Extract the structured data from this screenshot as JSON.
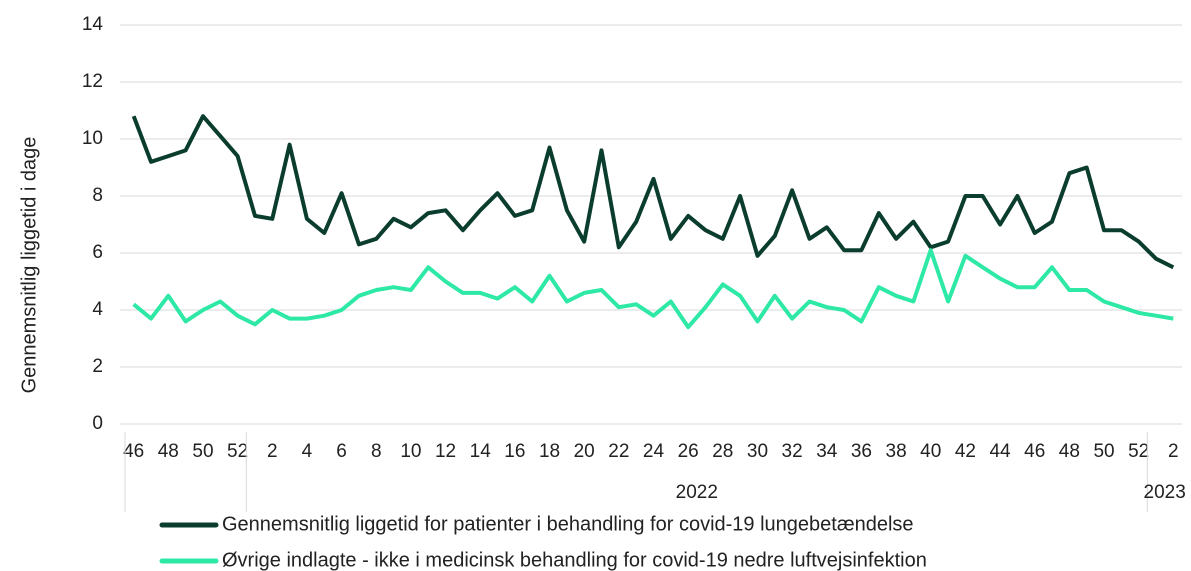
{
  "chart_data": {
    "type": "line",
    "y_label": "Gennemsnitlig liggetid i dage",
    "categories": [
      "46",
      null,
      "48",
      null,
      "50",
      null,
      "52",
      null,
      "2",
      null,
      "4",
      null,
      "6",
      null,
      "8",
      null,
      "10",
      null,
      "12",
      null,
      "14",
      null,
      "16",
      null,
      "18",
      null,
      "20",
      null,
      "22",
      null,
      "24",
      null,
      "26",
      null,
      "28",
      null,
      "30",
      null,
      "32",
      null,
      "34",
      null,
      "36",
      null,
      "38",
      null,
      "40",
      null,
      "42",
      null,
      "44",
      null,
      "46",
      null,
      "48",
      null,
      "50",
      null,
      "52",
      null,
      "2"
    ],
    "x_groups": [
      {
        "label": "2022",
        "first": 7,
        "last": 58
      },
      {
        "label": "2023",
        "first": 59,
        "last": 60
      }
    ],
    "series": [
      {
        "name": "Gennemsnitlig liggetid for patienter i behandling for covid-19 lungebetændelse",
        "color": "#0b3d2e",
        "values": [
          10.8,
          9.2,
          9.4,
          9.6,
          10.8,
          10.1,
          9.4,
          7.3,
          7.2,
          9.8,
          7.2,
          6.7,
          8.1,
          6.3,
          6.5,
          7.2,
          6.9,
          7.4,
          7.5,
          6.8,
          7.5,
          8.1,
          7.3,
          7.5,
          9.7,
          7.5,
          6.4,
          9.6,
          6.2,
          7.1,
          8.6,
          6.5,
          7.3,
          6.8,
          6.5,
          8.0,
          5.9,
          6.6,
          8.2,
          6.5,
          6.9,
          6.1,
          6.1,
          7.4,
          6.5,
          7.1,
          6.2,
          6.4,
          8.0,
          8.0,
          7.0,
          8.0,
          6.7,
          7.1,
          8.8,
          9.0,
          6.8,
          6.8,
          6.4,
          5.8,
          5.5
        ]
      },
      {
        "name": "Øvrige indlagte - ikke i medicinsk behandling for covid-19 nedre luftvejsinfektion",
        "color": "#2ee8a5",
        "values": [
          4.2,
          3.7,
          4.5,
          3.6,
          4.0,
          4.3,
          3.8,
          3.5,
          4.0,
          3.7,
          3.7,
          3.8,
          4.0,
          4.5,
          4.7,
          4.8,
          4.7,
          5.5,
          5.0,
          4.6,
          4.6,
          4.4,
          4.8,
          4.3,
          5.2,
          4.3,
          4.6,
          4.7,
          4.1,
          4.2,
          3.8,
          4.3,
          3.4,
          4.1,
          4.9,
          4.5,
          3.6,
          4.5,
          3.7,
          4.3,
          4.1,
          4.0,
          3.6,
          4.8,
          4.5,
          4.3,
          6.1,
          4.3,
          5.9,
          5.5,
          5.1,
          4.8,
          4.8,
          5.5,
          4.7,
          4.7,
          4.3,
          4.1,
          3.9,
          3.8,
          3.7
        ]
      }
    ],
    "ylim": [
      0,
      14
    ],
    "yticks": [
      0,
      2,
      4,
      6,
      8,
      10,
      12,
      14
    ],
    "grid": true,
    "legend": "bottom"
  }
}
